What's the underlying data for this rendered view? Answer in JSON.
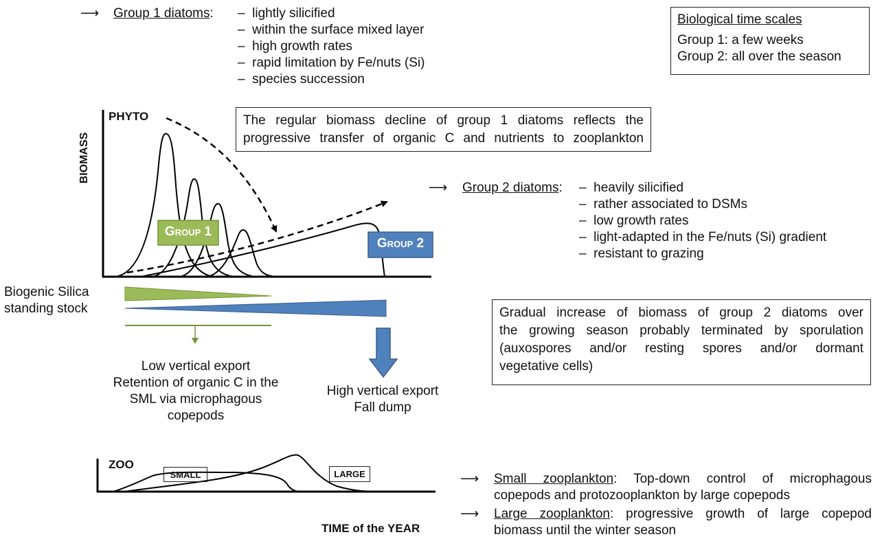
{
  "group1": {
    "arrow": "⟶",
    "title": "Group 1 diatoms",
    "colon": ":",
    "traits": [
      "lightly silicified",
      "within the surface mixed layer",
      "high growth rates",
      "rapid limitation by Fe/nuts (Si)",
      "species succession"
    ]
  },
  "timescales": {
    "title": "Biological time scales",
    "line1": "Group 1: a few weeks",
    "line2": "Group 2: all over the season"
  },
  "phyto": {
    "label": "PHYTO",
    "y_axis": "BIOMASS",
    "decline_box": [
      "The regular biomass decline of group 1 diatoms reflects the",
      "progressive transfer of organic C and nutrients to zooplankton"
    ],
    "group1_label": "Group 1",
    "group2_label": "Group 2"
  },
  "group2": {
    "arrow": "⟶",
    "title": "Group 2 diatoms",
    "colon": ":",
    "traits": [
      "heavily silicified",
      "rather associated to DSMs",
      "low growth rates",
      "light-adapted in the Fe/nuts (Si) gradient",
      "resistant to grazing"
    ]
  },
  "silica": {
    "label_line1": "Biogenic Silica",
    "label_line2": "standing stock"
  },
  "export1": [
    "Low vertical export",
    "Retention of organic C in the",
    "SML via microphagous",
    "copepods"
  ],
  "export2": [
    "High vertical export",
    "Fall dump"
  ],
  "increase_box": [
    "Gradual increase of biomass of group 2 diatoms over",
    "the growing season probably terminated by sporulation",
    "(auxospores and/or resting spores and/or dormant",
    "vegetative cells)"
  ],
  "zoo": {
    "label": "ZOO",
    "small": "SMALL",
    "large": "LARGE",
    "x_axis": "TIME of the YEAR"
  },
  "small_zoo": {
    "arrow": "⟶",
    "title": "Small zooplankton",
    "text_line1": ": Top-down control of microphagous",
    "text_line2": "copepods and protozooplankton by large copepods"
  },
  "large_zoo": {
    "arrow": "⟶",
    "title": "Large zooplankton",
    "text_line1": ": progressive growth of large copepod",
    "text_line2": "biomass until the winter season"
  },
  "colors": {
    "green": "#9bbb59",
    "blue": "#4f81bd",
    "dark_green": "#77933c"
  },
  "dash": "–"
}
